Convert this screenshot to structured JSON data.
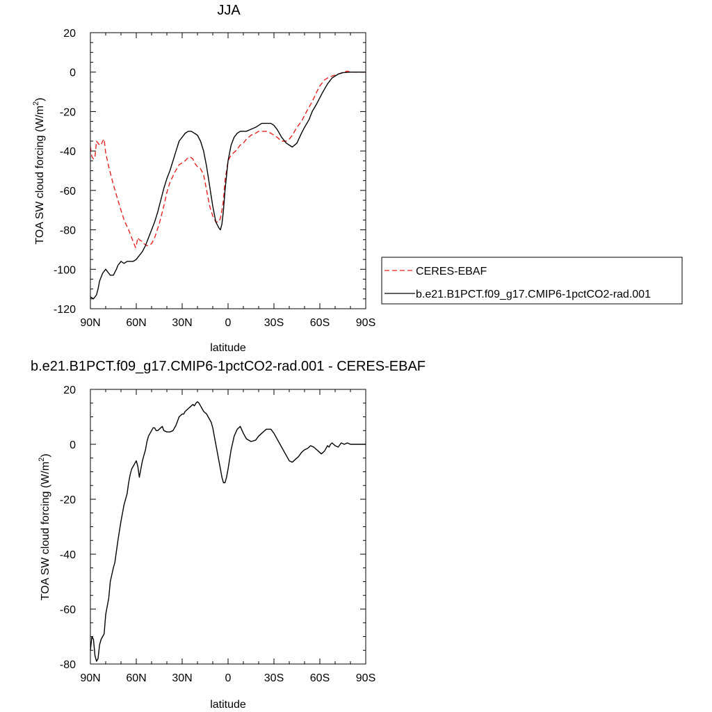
{
  "figure": {
    "panel1_title": "JJA",
    "panel2_title": "b.e21.B1PCT.f09_g17.CMIP6-1pctCO2-rad.001 - CERES-EBAF",
    "xlabel": "latitude",
    "ylabel_main": "TOA SW cloud forcing (W/m",
    "ylabel_sup": "2",
    "ylabel_close": ")"
  },
  "chart_data": [
    {
      "type": "line",
      "title": "JJA",
      "xlabel": "latitude",
      "ylabel": "TOA SW cloud forcing (W/m2)",
      "xlim": [
        90,
        -90
      ],
      "ylim": [
        -120,
        20
      ],
      "x_ticks": [
        90,
        60,
        30,
        0,
        -30,
        -60,
        -90
      ],
      "x_tick_labels": [
        "90N",
        "60N",
        "30N",
        "0",
        "30S",
        "60S",
        "90S"
      ],
      "y_ticks": [
        -120,
        -100,
        -80,
        -60,
        -40,
        -20,
        0,
        20
      ],
      "y_tick_labels": [
        "-120",
        "-100",
        "-80",
        "-60",
        "-40",
        "-20",
        "0",
        "20"
      ],
      "legend_position": "right",
      "series": [
        {
          "name": "CERES-EBAF",
          "color": "#e8211f",
          "dash": "dashed",
          "x": [
            90,
            89,
            88,
            87,
            86,
            85,
            84,
            83,
            82,
            81,
            80,
            78,
            75,
            72,
            70,
            68,
            65,
            62,
            60.5,
            60,
            59,
            58,
            56,
            55,
            53,
            52,
            50,
            48,
            45,
            42,
            40,
            38,
            35,
            32,
            30,
            28,
            27,
            25,
            23,
            22,
            20,
            18,
            16,
            14,
            12,
            10,
            8,
            6,
            5,
            4,
            3,
            2,
            0,
            -2,
            -5,
            -8,
            -10,
            -12,
            -15,
            -18,
            -20,
            -22,
            -25,
            -28,
            -30,
            -32,
            -35,
            -38,
            -40,
            -42,
            -45,
            -48,
            -50,
            -52,
            -55,
            -58,
            -60,
            -62,
            -63,
            -65,
            -68,
            -70,
            -72,
            -74,
            -75,
            -76,
            -78,
            -80,
            -85,
            -90
          ],
          "y": [
            -38,
            -43,
            -44,
            -43,
            -35,
            -36,
            -37,
            -37,
            -35,
            -34,
            -41,
            -48,
            -57,
            -65,
            -70,
            -75,
            -80,
            -86,
            -89,
            -88,
            -84,
            -85,
            -86,
            -87,
            -88,
            -88,
            -87,
            -84,
            -77,
            -68,
            -61,
            -56,
            -51,
            -47,
            -46,
            -45,
            -44,
            -43,
            -44,
            -46,
            -48,
            -49,
            -52,
            -60,
            -68,
            -73,
            -76,
            -76,
            -74,
            -70,
            -65,
            -55,
            -45,
            -42,
            -40,
            -37,
            -36,
            -34,
            -32,
            -31,
            -30,
            -30,
            -30,
            -31,
            -32,
            -33,
            -35,
            -35,
            -34,
            -32,
            -28,
            -25,
            -22,
            -19,
            -15,
            -10,
            -7,
            -5,
            -4,
            -3,
            -2,
            -1.5,
            -1,
            -0.5,
            0,
            0,
            0.5,
            0,
            0,
            0
          ]
        },
        {
          "name": "b.e21.B1PCT.f09_g17.CMIP6-1pctCO2-rad.001",
          "color": "#000000",
          "dash": "solid",
          "x": [
            90,
            88,
            87,
            86,
            85,
            84,
            83,
            82,
            81,
            80,
            79,
            78,
            77,
            76,
            75,
            73,
            72,
            71,
            70,
            68,
            66,
            64,
            62,
            60,
            58,
            56,
            54,
            52,
            50,
            48,
            46,
            44,
            42,
            40,
            38,
            36,
            34,
            32,
            30,
            28,
            26,
            24,
            22,
            20,
            18,
            16,
            14,
            12,
            10,
            8,
            6,
            5,
            4,
            3,
            2,
            0,
            -2,
            -4,
            -6,
            -8,
            -10,
            -12,
            -15,
            -18,
            -20,
            -22,
            -25,
            -28,
            -30,
            -32,
            -35,
            -38,
            -40,
            -42,
            -45,
            -48,
            -50,
            -53,
            -55,
            -58,
            -60,
            -62,
            -65,
            -68,
            -70,
            -72,
            -75,
            -80,
            -85,
            -90
          ],
          "y": [
            -114,
            -115,
            -114,
            -113,
            -110,
            -106,
            -104,
            -102,
            -101,
            -100,
            -101,
            -102,
            -103,
            -103,
            -103,
            -100,
            -98,
            -97,
            -96,
            -97,
            -96,
            -96,
            -96,
            -95,
            -93,
            -91,
            -88,
            -84,
            -80,
            -76,
            -71,
            -65,
            -59,
            -54,
            -50,
            -45,
            -40,
            -35,
            -33,
            -31,
            -30,
            -30,
            -31,
            -32,
            -35,
            -40,
            -48,
            -58,
            -68,
            -76,
            -79,
            -80,
            -77,
            -70,
            -60,
            -45,
            -37,
            -33,
            -31,
            -30,
            -30,
            -30,
            -29,
            -28,
            -27,
            -26,
            -26,
            -26,
            -27,
            -29,
            -33,
            -36,
            -37,
            -38,
            -36,
            -31,
            -28,
            -24,
            -20,
            -16,
            -13,
            -10,
            -6,
            -3,
            -2,
            -1,
            -0.3,
            0,
            0,
            0
          ]
        }
      ]
    },
    {
      "type": "line",
      "title": "b.e21.B1PCT.f09_g17.CMIP6-1pctCO2-rad.001 - CERES-EBAF",
      "xlabel": "latitude",
      "ylabel": "TOA SW cloud forcing (W/m2)",
      "xlim": [
        90,
        -90
      ],
      "ylim": [
        -80,
        20
      ],
      "x_ticks": [
        90,
        60,
        30,
        0,
        -30,
        -60,
        -90
      ],
      "x_tick_labels": [
        "90N",
        "60N",
        "30N",
        "0",
        "30S",
        "60S",
        "90S"
      ],
      "y_ticks": [
        -80,
        -60,
        -40,
        -20,
        0,
        20
      ],
      "y_tick_labels": [
        "-80",
        "-60",
        "-40",
        "-20",
        "0",
        "20"
      ],
      "series": [
        {
          "color": "#000000",
          "dash": "solid",
          "x": [
            90,
            89,
            88,
            87,
            86,
            85,
            84,
            83,
            82,
            81,
            80,
            78,
            77,
            75,
            74,
            73,
            72,
            70,
            68,
            66,
            65,
            64,
            63,
            62,
            61,
            60.5,
            60,
            59,
            58,
            56,
            54,
            53,
            52,
            51,
            50,
            49,
            48,
            47,
            46,
            45,
            44,
            43,
            42,
            40,
            38,
            36,
            34,
            32,
            30,
            29,
            28,
            26,
            25,
            24,
            23,
            22,
            21,
            20,
            19,
            18,
            17,
            16,
            15,
            14,
            13,
            12,
            11,
            10,
            9,
            8,
            7,
            6,
            5,
            4,
            3,
            2,
            1,
            0,
            -2,
            -4,
            -6,
            -8,
            -10,
            -12,
            -15,
            -18,
            -20,
            -22,
            -25,
            -28,
            -30,
            -32,
            -35,
            -38,
            -40,
            -42,
            -44,
            -46,
            -48,
            -50,
            -52,
            -54,
            -56,
            -58,
            -60,
            -61,
            -62,
            -63,
            -64,
            -65,
            -66,
            -67,
            -68,
            -70,
            -72,
            -74,
            -76,
            -78,
            -80,
            -85,
            -90
          ],
          "y": [
            -75,
            -70,
            -71,
            -77,
            -79,
            -78,
            -73,
            -71,
            -70,
            -69,
            -62,
            -56,
            -50,
            -45,
            -43,
            -39,
            -35,
            -28,
            -22,
            -18,
            -14,
            -11,
            -9,
            -8,
            -7,
            -6.5,
            -6,
            -8,
            -12,
            -6,
            -2,
            1,
            3,
            4,
            5,
            6,
            6,
            5,
            5,
            5.5,
            6,
            6.5,
            5,
            4.5,
            4.5,
            5,
            7,
            10,
            11,
            11,
            12,
            13,
            13.5,
            14,
            14.5,
            14,
            15,
            15.5,
            15,
            14,
            13,
            12,
            11.5,
            11,
            10,
            9,
            8,
            6,
            3,
            0,
            -3,
            -6,
            -9,
            -12,
            -14,
            -14,
            -12,
            -9,
            -2,
            3,
            5.5,
            6.5,
            4,
            2,
            1,
            1.5,
            3,
            4,
            5.5,
            5.5,
            4,
            2,
            -1,
            -4,
            -6,
            -6.5,
            -5.5,
            -4.5,
            -3,
            -2,
            -1.5,
            -0.5,
            -1,
            -2,
            -3,
            -3.5,
            -3,
            -2.5,
            -1.5,
            -0.5,
            -1,
            0,
            0.5,
            -0.5,
            -1,
            0.5,
            0,
            0.5,
            0,
            0,
            0
          ]
        }
      ]
    }
  ]
}
